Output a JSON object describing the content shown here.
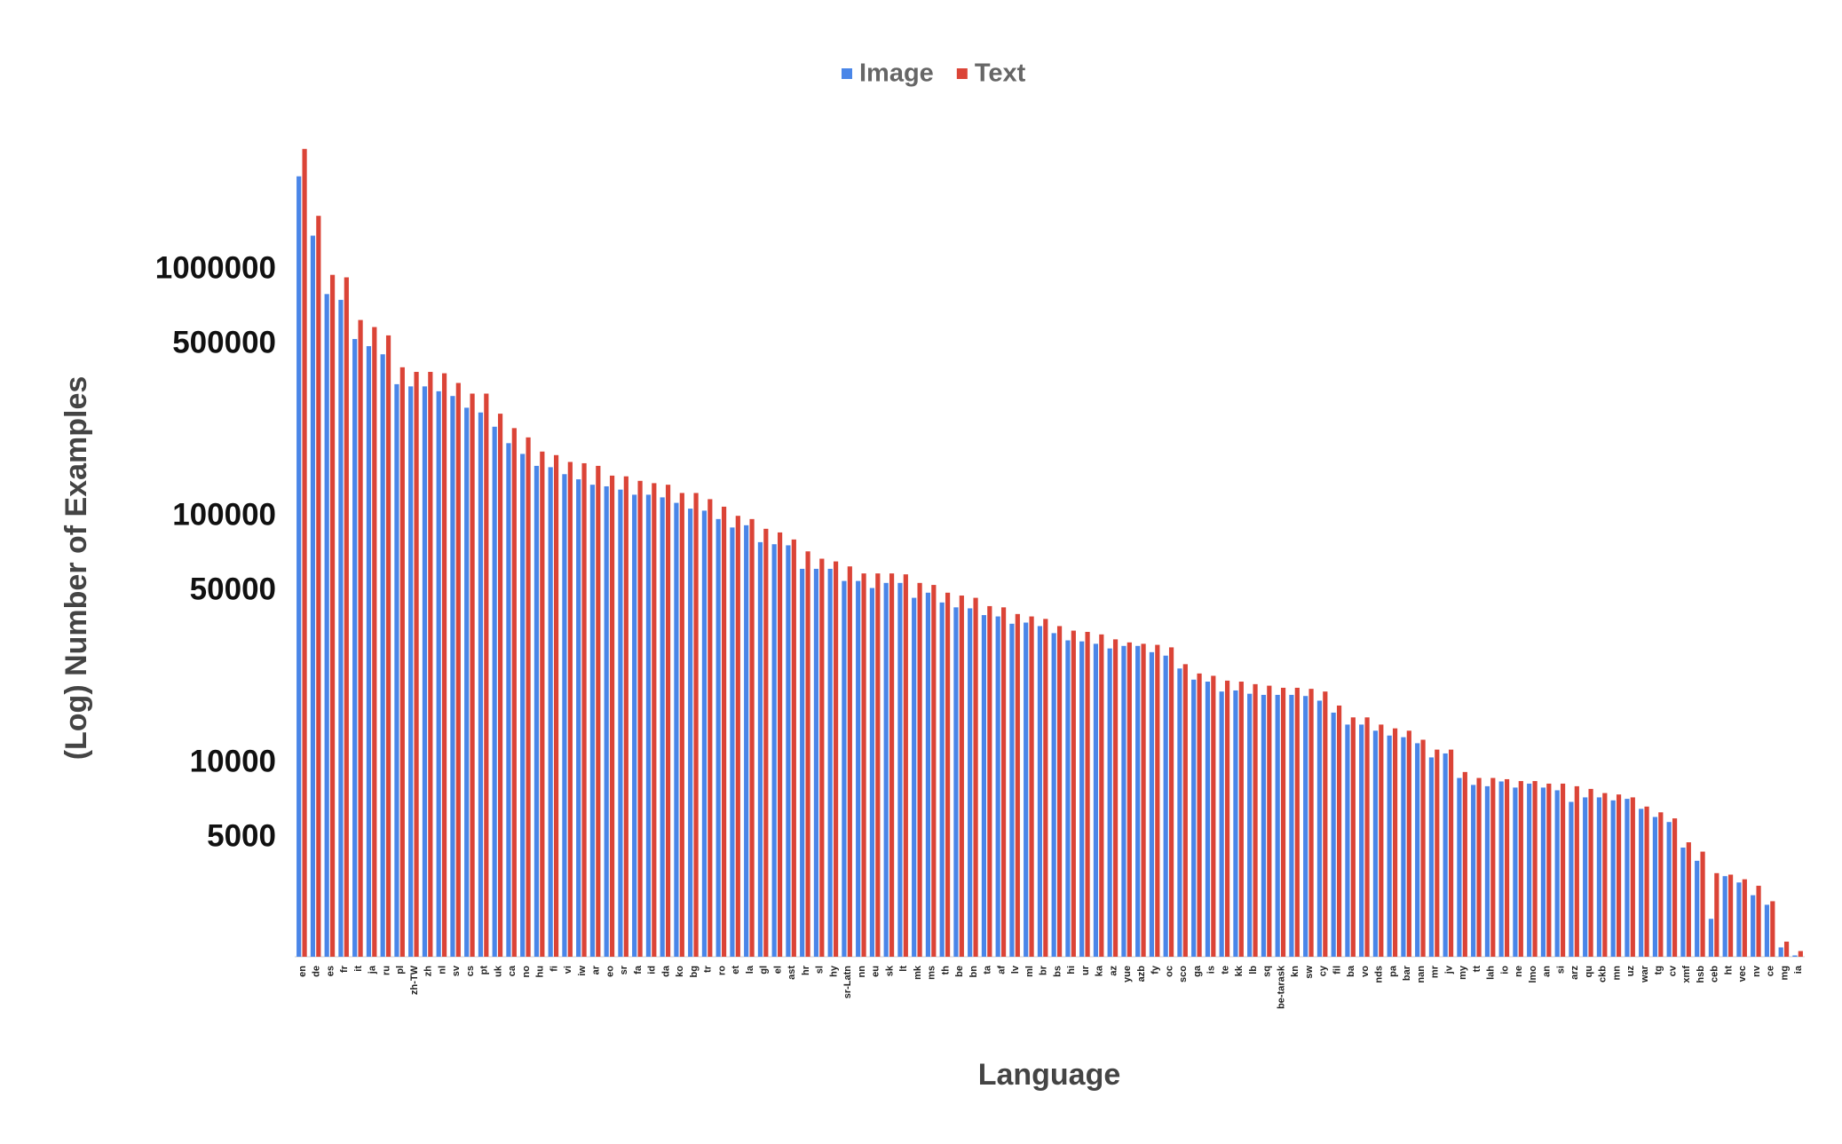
{
  "chart_data": {
    "type": "bar",
    "x_label": "Language",
    "y_label": "(Log) Number of Examples",
    "log_scale": true,
    "grid": false,
    "legend": "top",
    "ylim": [
      1650,
      4000000
    ],
    "yticks": [
      5000,
      10000,
      50000,
      100000,
      500000,
      1000000
    ],
    "categories": [
      "en",
      "de",
      "es",
      "fr",
      "it",
      "ja",
      "ru",
      "pl",
      "zh-TW",
      "zh",
      "nl",
      "sv",
      "cs",
      "pt",
      "uk",
      "ca",
      "no",
      "hu",
      "fi",
      "vi",
      "iw",
      "ar",
      "eo",
      "sr",
      "fa",
      "id",
      "da",
      "ko",
      "bg",
      "tr",
      "ro",
      "et",
      "la",
      "gl",
      "el",
      "ast",
      "hr",
      "sl",
      "hy",
      "sr-Latn",
      "nn",
      "eu",
      "sk",
      "lt",
      "mk",
      "ms",
      "th",
      "be",
      "bn",
      "ta",
      "af",
      "lv",
      "ml",
      "br",
      "bs",
      "hi",
      "ur",
      "ka",
      "az",
      "yue",
      "azb",
      "fy",
      "oc",
      "sco",
      "ga",
      "is",
      "te",
      "kk",
      "lb",
      "sq",
      "be-tarask",
      "kn",
      "sw",
      "cy",
      "fil",
      "ba",
      "vo",
      "nds",
      "pa",
      "bar",
      "nan",
      "mr",
      "jv",
      "my",
      "tt",
      "lah",
      "io",
      "ne",
      "lmo",
      "an",
      "si",
      "arz",
      "qu",
      "ckb",
      "mn",
      "uz",
      "war",
      "tg",
      "cv",
      "xmf",
      "hsb",
      "ceb",
      "ht",
      "vec",
      "nv",
      "ce",
      "mg",
      "ia"
    ],
    "series": [
      {
        "name": "Image",
        "color": "#4a86e8",
        "values": [
          2400000,
          1380000,
          800000,
          758000,
          526000,
          492000,
          456000,
          345000,
          338000,
          338000,
          323000,
          309000,
          277000,
          265000,
          232000,
          199000,
          180000,
          161000,
          159000,
          149000,
          142000,
          135000,
          133000,
          129000,
          123000,
          123000,
          120000,
          114000,
          108000,
          106000,
          98000,
          90600,
          92500,
          79000,
          77500,
          76700,
          61600,
          61600,
          61600,
          55000,
          55000,
          51500,
          54000,
          54000,
          47000,
          49300,
          45000,
          43000,
          42600,
          40000,
          39500,
          36900,
          37300,
          36100,
          33800,
          31600,
          31300,
          30600,
          29300,
          30000,
          30000,
          28300,
          27400,
          24300,
          21900,
          21500,
          19600,
          19800,
          19200,
          19000,
          19000,
          19000,
          18800,
          18000,
          16100,
          14400,
          14400,
          13600,
          13000,
          12800,
          12100,
          10600,
          11000,
          8750,
          8200,
          8100,
          8470,
          8000,
          8300,
          8000,
          7800,
          7000,
          7300,
          7300,
          7100,
          7200,
          6560,
          6080,
          5800,
          4570,
          4040,
          2350,
          3500,
          3300,
          2930,
          2680,
          1800,
          1670
        ]
      },
      {
        "name": "Text",
        "color": "#db4437",
        "values": [
          3100000,
          1660000,
          957000,
          935000,
          628000,
          588000,
          544000,
          404000,
          387000,
          387000,
          382000,
          349000,
          316000,
          316000,
          262000,
          229000,
          210000,
          184000,
          178000,
          167000,
          165000,
          161000,
          147000,
          146000,
          140000,
          137000,
          135000,
          125000,
          125000,
          118000,
          110000,
          101000,
          98000,
          89500,
          86500,
          81000,
          72500,
          67700,
          66000,
          63000,
          59000,
          59000,
          59000,
          58500,
          54000,
          53000,
          49300,
          48000,
          47000,
          43500,
          43000,
          40400,
          39500,
          38600,
          36100,
          34600,
          34200,
          33400,
          31900,
          31000,
          30600,
          30300,
          29600,
          25300,
          23200,
          22700,
          21700,
          21500,
          21000,
          20700,
          20300,
          20300,
          20100,
          19600,
          17200,
          15400,
          15400,
          14400,
          13900,
          13600,
          12500,
          11400,
          11400,
          9250,
          8750,
          8750,
          8650,
          8500,
          8500,
          8300,
          8300,
          8100,
          7900,
          7600,
          7500,
          7300,
          6700,
          6350,
          6000,
          4800,
          4400,
          3600,
          3550,
          3400,
          3200,
          2770,
          1900,
          1740
        ]
      }
    ]
  }
}
